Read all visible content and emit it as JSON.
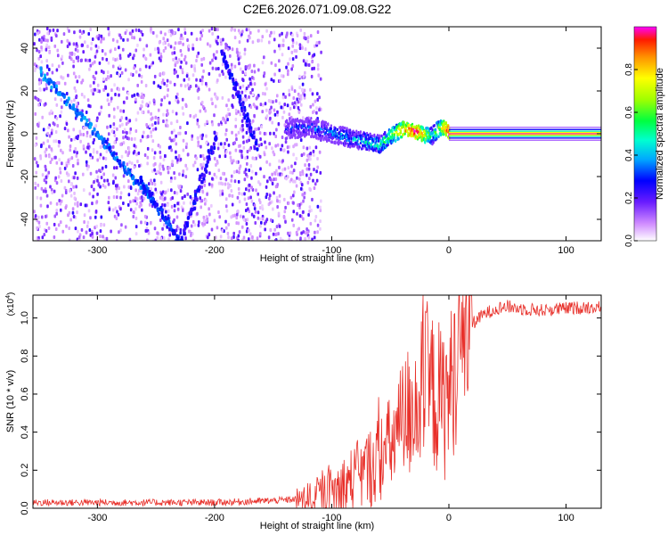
{
  "title": "C2E6.2026.071.09.08.G22",
  "chart_data": [
    {
      "type": "heatmap",
      "xlabel": "Height of straight line (km)",
      "ylabel": "Frequency (Hz)",
      "xlim": [
        -355,
        130
      ],
      "ylim": [
        -50,
        50
      ],
      "x_ticks": [
        -300,
        -200,
        -100,
        0,
        100
      ],
      "x_tick_labels": [
        "-300",
        "-200",
        "-100",
        "0",
        "100"
      ],
      "y_ticks": [
        -40,
        -20,
        0,
        20,
        40
      ],
      "y_tick_labels": [
        "-40",
        "-20",
        "0",
        "20",
        "40"
      ],
      "noise_region_x": [
        -355,
        -110
      ],
      "ridge": {
        "x": [
          -140,
          -120,
          -100,
          -80,
          -60,
          -50,
          -40,
          -30,
          -20,
          -15,
          -10,
          -5,
          0,
          50,
          100,
          130
        ],
        "freq": [
          2,
          3,
          0,
          -3,
          -5,
          -1,
          2,
          1,
          -1,
          -1,
          2,
          3,
          0,
          0,
          0,
          0
        ],
        "amplitude": [
          0.25,
          0.3,
          0.35,
          0.4,
          0.5,
          0.6,
          0.8,
          0.95,
          0.7,
          0.5,
          0.6,
          0.8,
          1.0,
          1.0,
          1.0,
          1.0
        ]
      },
      "colorbar": {
        "label": "Normalized spectral amplitude",
        "range": [
          0,
          1
        ],
        "ticks": [
          0.0,
          0.2,
          0.4,
          0.6,
          0.8
        ],
        "tick_labels": [
          "0.0",
          "0.2",
          "0.4",
          "0.6",
          "0.8"
        ]
      }
    },
    {
      "type": "line",
      "xlabel": "Height of straight line (km)",
      "ylabel": "SNR (10 * v/v)",
      "y_scale_label": "(x10",
      "y_scale_exp": "4",
      "xlim": [
        -355,
        130
      ],
      "ylim": [
        0,
        1.12
      ],
      "x_ticks": [
        -300,
        -200,
        -100,
        0,
        100
      ],
      "x_tick_labels": [
        "-300",
        "-200",
        "-100",
        "0",
        "100"
      ],
      "y_ticks": [
        0.0,
        0.2,
        0.4,
        0.6,
        0.8,
        1.0
      ],
      "y_tick_labels": [
        "0.0",
        "0.2",
        "0.4",
        "0.6",
        "0.8",
        "1.0"
      ],
      "line_color": "#e8302a",
      "series": [
        {
          "name": "SNR",
          "x": [
            -355,
            -300,
            -250,
            -200,
            -150,
            -120,
            -100,
            -90,
            -80,
            -70,
            -60,
            -50,
            -40,
            -35,
            -30,
            -25,
            -20,
            -15,
            -10,
            -5,
            0,
            5,
            10,
            15,
            20,
            30,
            40,
            50,
            60,
            80,
            100,
            130
          ],
          "y": [
            0.03,
            0.03,
            0.03,
            0.03,
            0.04,
            0.05,
            0.08,
            0.12,
            0.16,
            0.2,
            0.26,
            0.33,
            0.42,
            0.5,
            0.56,
            0.6,
            0.63,
            0.62,
            0.58,
            0.55,
            0.6,
            0.72,
            0.85,
            0.92,
            0.97,
            1.02,
            1.05,
            1.06,
            1.05,
            1.04,
            1.05,
            1.06
          ]
        }
      ]
    }
  ]
}
